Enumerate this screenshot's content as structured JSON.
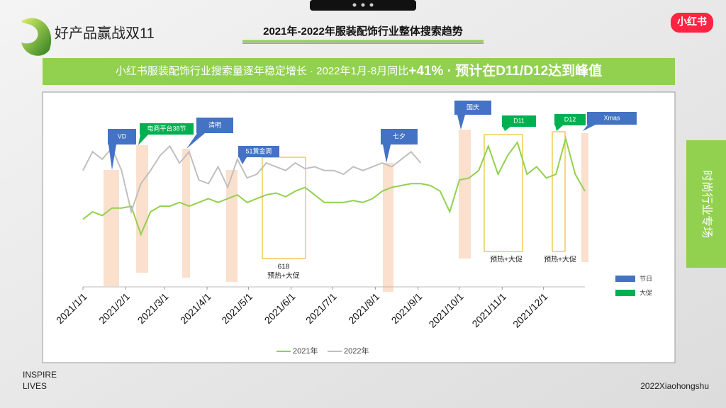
{
  "slide": {
    "brand": "好产品赢战双11",
    "title": "2021年-2022年服装配饰行业整体搜索趋势",
    "banner_lead": "小红书服装配饰行业搜索量逐年稳定增长 · 2022年1月-8月同比",
    "banner_emph": "+41% · 预计在D11/D12达到峰值",
    "side_tab": "时尚行业专场",
    "logo": "小红书",
    "footer_left": [
      "INSPIRE",
      "LIVES"
    ],
    "footer_right": "2022Xiaohongshu"
  },
  "chart_data": {
    "type": "line",
    "x": [
      "2021/1/1",
      "2021/1/8",
      "2021/1/15",
      "2021/1/22",
      "2021/1/29",
      "2021/2/5",
      "2021/2/12",
      "2021/2/19",
      "2021/2/26",
      "2021/3/5",
      "2021/3/12",
      "2021/3/19",
      "2021/3/26",
      "2021/4/2",
      "2021/4/9",
      "2021/4/16",
      "2021/4/23",
      "2021/4/30",
      "2021/5/7",
      "2021/5/14",
      "2021/5/21",
      "2021/5/28",
      "2021/6/4",
      "2021/6/11",
      "2021/6/18",
      "2021/6/25",
      "2021/7/2",
      "2021/7/9",
      "2021/7/16",
      "2021/7/23",
      "2021/7/30",
      "2021/8/6",
      "2021/8/13",
      "2021/8/20",
      "2021/8/27",
      "2021/9/3",
      "2021/9/10",
      "2021/9/17",
      "2021/9/24",
      "2021/10/1",
      "2021/10/8",
      "2021/10/15",
      "2021/10/22",
      "2021/10/29",
      "2021/11/5",
      "2021/11/12",
      "2021/11/19",
      "2021/11/26",
      "2021/12/3",
      "2021/12/10",
      "2021/12/17",
      "2021/12/24",
      "2021/12/31"
    ],
    "series": [
      {
        "name": "2021年",
        "color": "#92d050",
        "values": [
          36,
          40,
          38,
          42,
          42,
          43,
          28,
          40,
          43,
          43,
          45,
          43,
          45,
          47,
          45,
          47,
          49,
          45,
          47,
          49,
          50,
          48,
          51,
          53,
          49,
          45,
          45,
          45,
          46,
          45,
          47,
          51,
          53,
          54,
          55,
          55,
          54,
          51,
          40,
          57,
          58,
          62,
          75,
          60,
          70,
          77,
          60,
          64,
          58,
          60,
          79,
          60,
          51
        ]
      },
      {
        "name": "2022年",
        "color": "#bfbfbf",
        "values": [
          62,
          72,
          68,
          74,
          62,
          40,
          55,
          62,
          70,
          75,
          66,
          72,
          57,
          55,
          64,
          53,
          68,
          58,
          60,
          66,
          64,
          62,
          66,
          63,
          64,
          62,
          62,
          60,
          64,
          62,
          64,
          66,
          64,
          68,
          72,
          66,
          null,
          null,
          null,
          null,
          null,
          null,
          null,
          null,
          null,
          null,
          null,
          null,
          null,
          null,
          null,
          null,
          null
        ]
      }
    ],
    "xlim": [
      "2021/1/1",
      "2021/12/31"
    ],
    "xticks": [
      "2021/1/1",
      "2021/2/1",
      "2021/3/1",
      "2021/4/1",
      "2021/5/1",
      "2021/6/1",
      "2021/7/1",
      "2021/8/1",
      "2021/9/1",
      "2021/10/1",
      "2021/11/1",
      "2021/12/1"
    ],
    "ylim": [
      0,
      100
    ],
    "annotations": [
      {
        "text": "VD",
        "color": "#4472c4"
      },
      {
        "text": "电商平台38节",
        "color": "#00b050"
      },
      {
        "text": "清明",
        "color": "#4472c4"
      },
      {
        "text": "51黄金周",
        "color": "#4472c4"
      },
      {
        "text": "七夕",
        "color": "#4472c4"
      },
      {
        "text": "国庆",
        "color": "#4472c4"
      },
      {
        "text": "D11",
        "color": "#00b050"
      },
      {
        "text": "D12",
        "color": "#00b050"
      },
      {
        "text": "Xmas",
        "color": "#4472c4"
      }
    ],
    "period_labels": [
      "618",
      "预热+大促",
      "预热+大促",
      "预热+大促"
    ],
    "key": [
      {
        "name": "节日",
        "color": "#4472c4"
      },
      {
        "name": "大促",
        "color": "#00b050"
      }
    ]
  }
}
